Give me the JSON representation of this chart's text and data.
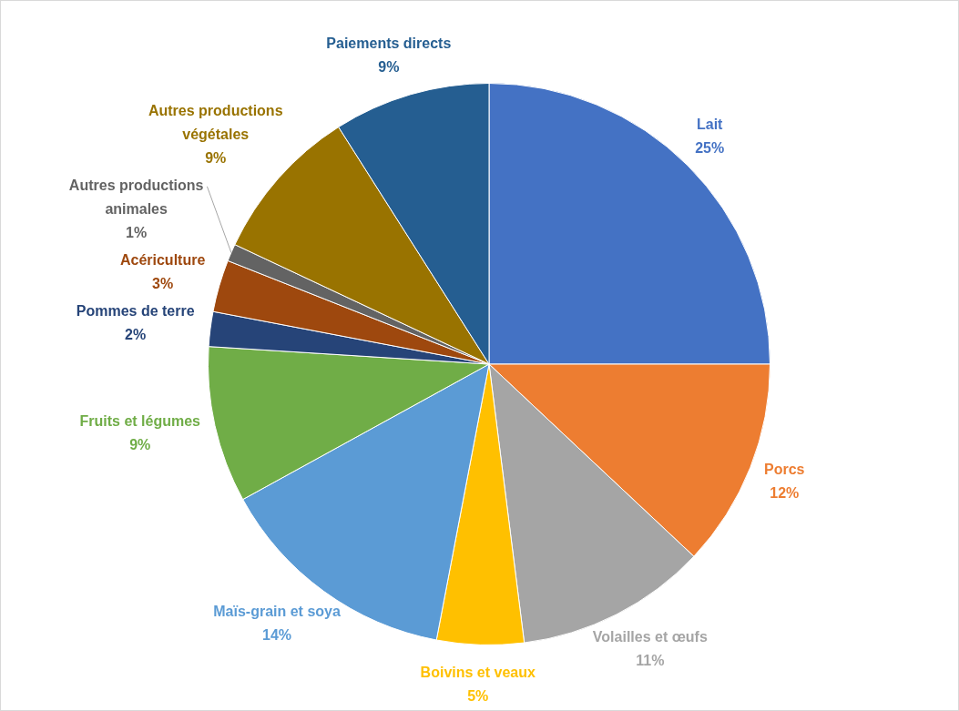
{
  "chart_data": {
    "type": "pie",
    "categories": [
      "Lait",
      "Porcs",
      "Volailles et œufs",
      "Boivins et veaux",
      "Maïs-grain et soya",
      "Fruits et légumes",
      "Pommes de terre",
      "Acériculture",
      "Autres productions animales",
      "Autres productions végétales",
      "Paiements directs"
    ],
    "values": [
      25,
      12,
      11,
      5,
      14,
      9,
      2,
      3,
      1,
      9,
      9
    ],
    "value_labels": [
      "25%",
      "12%",
      "11%",
      "5%",
      "14%",
      "9%",
      "2%",
      "3%",
      "1%",
      "9%",
      "9%"
    ],
    "colors": [
      "#4472c4",
      "#ed7d31",
      "#a5a5a5",
      "#ffc000",
      "#5b9bd5",
      "#70ad47",
      "#264478",
      "#9e480e",
      "#636363",
      "#997300",
      "#255e91"
    ],
    "legend": false
  }
}
